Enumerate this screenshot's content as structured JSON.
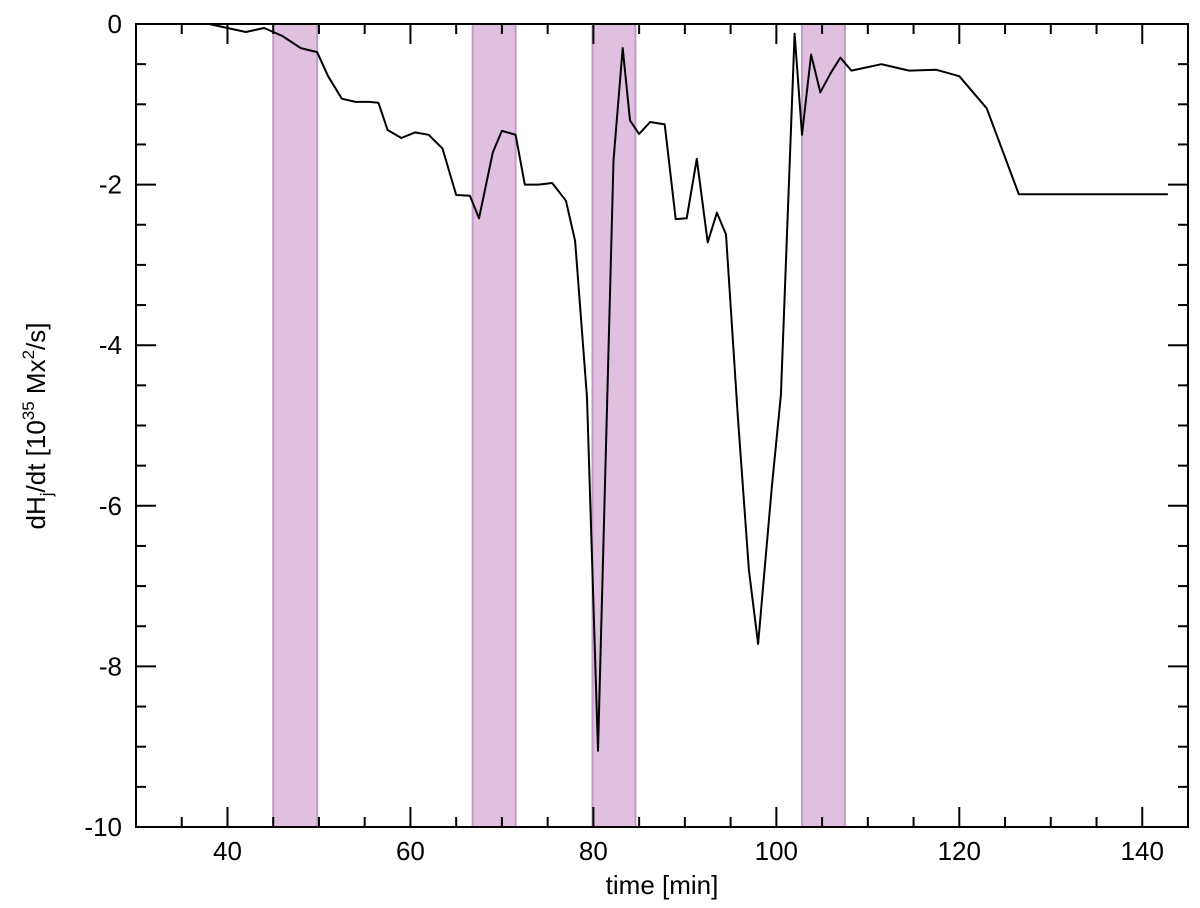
{
  "chart_data": {
    "type": "line",
    "title": "",
    "xlabel": "time [min]",
    "ylabel_parts": {
      "pre": "dH",
      "sub": "j",
      "mid": "/dt [10",
      "sup1": "35",
      "mid2": " Mx",
      "sup2": "2",
      "post": "/s]"
    },
    "xlim": [
      30,
      145
    ],
    "ylim": [
      -10,
      0
    ],
    "x_major_ticks": [
      40,
      60,
      80,
      100,
      120,
      140
    ],
    "x_minor_ticks": [
      35,
      45,
      50,
      55,
      65,
      70,
      75,
      85,
      90,
      95,
      105,
      110,
      115,
      125,
      130,
      135
    ],
    "x_tick_labels": [
      "40",
      "60",
      "80",
      "100",
      "120",
      "140"
    ],
    "y_major_ticks": [
      0,
      -2,
      -4,
      -6,
      -8,
      -10
    ],
    "y_minor_ticks": [
      -0.5,
      -1,
      -1.5,
      -2.5,
      -3,
      -3.5,
      -4.5,
      -5,
      -5.5,
      -6.5,
      -7,
      -7.5,
      -8.5,
      -9,
      -9.5
    ],
    "y_tick_labels": [
      "0",
      "-2",
      "-4",
      "-6",
      "-8",
      "-10"
    ],
    "grid": false,
    "legend": "none",
    "colors": {
      "line": "#000000",
      "band_fill": "#e0bfe0",
      "band_edge": "#c49ac9"
    },
    "shaded_intervals": [
      [
        45.0,
        49.8
      ],
      [
        66.8,
        71.5
      ],
      [
        79.9,
        84.6
      ],
      [
        102.8,
        107.5
      ]
    ],
    "series": [
      {
        "x": [
          38.0,
          40.0,
          42.0,
          44.0,
          46.0,
          48.0,
          49.8,
          51.0,
          52.5,
          54.0,
          55.5,
          56.5,
          57.5,
          59.0,
          60.5,
          62.0,
          63.5,
          65.0,
          66.5,
          67.5,
          69.0,
          70.0,
          71.5,
          72.5,
          74.0,
          75.5,
          77.0,
          78.0,
          79.3,
          80.5,
          82.2,
          83.2,
          84.0,
          85.0,
          86.2,
          87.8,
          89.0,
          90.2,
          91.3,
          92.5,
          93.5,
          94.5,
          95.8,
          97.0,
          98.0,
          99.5,
          100.5,
          102.0,
          102.8,
          103.8,
          104.8,
          106.0,
          107.0,
          108.2,
          111.5,
          114.5,
          117.5,
          120.0,
          123.0,
          126.5,
          129.0,
          132.0,
          134.5,
          137.5,
          140.0,
          142.8
        ],
        "y": [
          0.0,
          -0.05,
          -0.1,
          -0.05,
          -0.15,
          -0.3,
          -0.35,
          -0.65,
          -0.93,
          -0.97,
          -0.97,
          -0.98,
          -1.32,
          -1.42,
          -1.35,
          -1.38,
          -1.55,
          -2.13,
          -2.14,
          -2.42,
          -1.6,
          -1.33,
          -1.38,
          -2.0,
          -2.0,
          -1.98,
          -2.2,
          -2.7,
          -4.65,
          -9.05,
          -1.7,
          -0.3,
          -1.2,
          -1.37,
          -1.22,
          -1.25,
          -2.43,
          -2.42,
          -1.68,
          -2.72,
          -2.35,
          -2.62,
          -4.9,
          -6.8,
          -7.72,
          -5.77,
          -4.62,
          -0.12,
          -1.38,
          -0.38,
          -0.85,
          -0.6,
          -0.42,
          -0.58,
          -0.5,
          -0.58,
          -0.57,
          -0.65,
          -1.05,
          -2.12,
          -2.12,
          -2.12,
          -2.12,
          -2.12,
          -2.12,
          -2.12
        ]
      }
    ]
  }
}
